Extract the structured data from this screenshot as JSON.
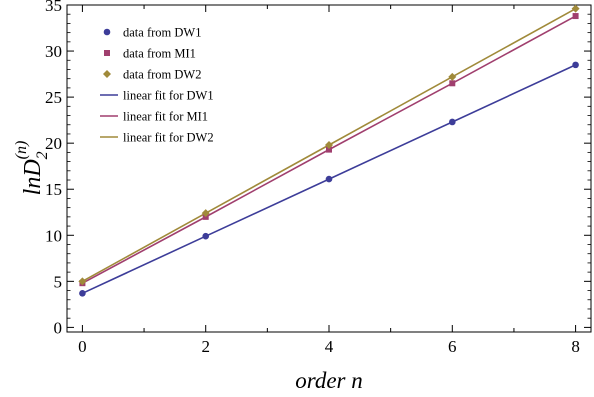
{
  "chart_data": {
    "type": "scatter",
    "x": [
      0,
      2,
      4,
      6,
      8
    ],
    "xlim": [
      -0.25,
      8.25
    ],
    "ylim": [
      -0.5,
      35
    ],
    "x_ticks": [
      "0",
      "2",
      "4",
      "6",
      "8"
    ],
    "y_ticks": [
      "0",
      "5",
      "10",
      "15",
      "20",
      "25",
      "30",
      "35"
    ],
    "xlabel": "order n",
    "ylabel": {
      "base": "lnD",
      "subscript": "2",
      "superscript": "(n)"
    },
    "grid": false,
    "legend_position": "top-left",
    "series": [
      {
        "name": "data from DW1",
        "marker": "circle",
        "color": "#3d3d99",
        "values": [
          3.7,
          9.9,
          16.1,
          22.3,
          28.5
        ]
      },
      {
        "name": "data from MI1",
        "marker": "square",
        "color": "#a03f6e",
        "values": [
          4.8,
          12.0,
          19.3,
          26.5,
          33.8
        ]
      },
      {
        "name": "data from DW2",
        "marker": "diamond",
        "color": "#a08a3a",
        "values": [
          5.0,
          12.4,
          19.8,
          27.2,
          34.6
        ]
      }
    ],
    "fits": [
      {
        "name": "linear fit for DW1",
        "color": "#3d3d99",
        "values": [
          3.7,
          9.9,
          16.1,
          22.3,
          28.5
        ]
      },
      {
        "name": "linear fit for MI1",
        "color": "#a03f6e",
        "values": [
          4.8,
          12.0,
          19.3,
          26.5,
          33.8
        ]
      },
      {
        "name": "linear fit for DW2",
        "color": "#a08a3a",
        "values": [
          5.0,
          12.4,
          19.8,
          27.2,
          34.6
        ]
      }
    ]
  }
}
